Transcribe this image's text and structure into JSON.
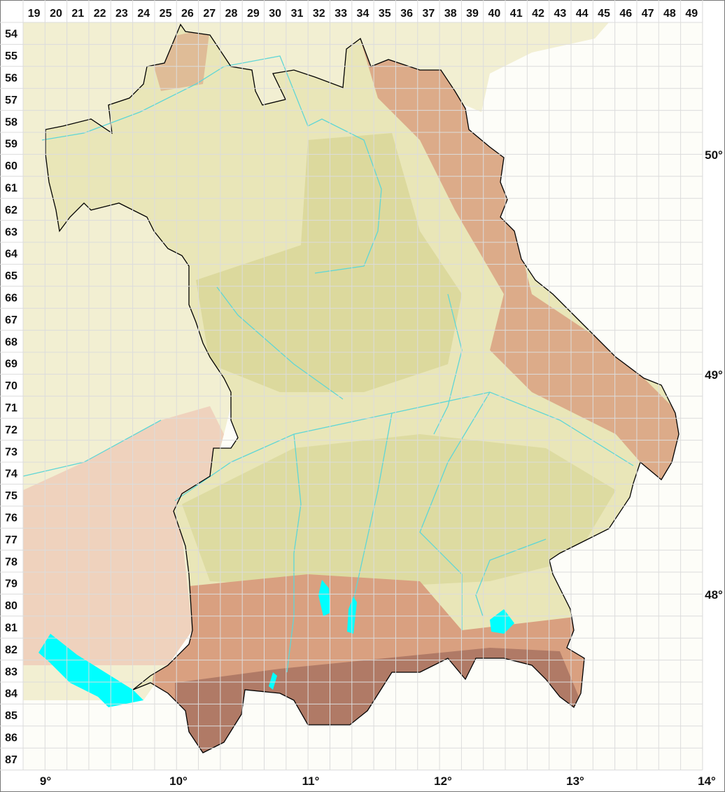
{
  "map": {
    "grid_columns": [
      "19",
      "20",
      "21",
      "22",
      "23",
      "24",
      "25",
      "26",
      "27",
      "28",
      "29",
      "30",
      "31",
      "32",
      "33",
      "34",
      "35",
      "36",
      "37",
      "38",
      "39",
      "40",
      "41",
      "42",
      "43",
      "44",
      "45",
      "46",
      "47",
      "48",
      "49"
    ],
    "grid_rows": [
      "54",
      "55",
      "56",
      "57",
      "58",
      "59",
      "60",
      "61",
      "62",
      "63",
      "64",
      "65",
      "66",
      "67",
      "68",
      "69",
      "70",
      "71",
      "72",
      "73",
      "74",
      "75",
      "76",
      "77",
      "78",
      "79",
      "80",
      "81",
      "82",
      "83",
      "84",
      "85",
      "86",
      "87"
    ],
    "longitude_labels": [
      "9°",
      "10°",
      "11°",
      "12°",
      "13°",
      "14°"
    ],
    "latitude_labels": [
      "50°",
      "49°",
      "48°"
    ],
    "colors": {
      "background": "#fdfdf8",
      "grid_line": "#dcdcdc",
      "lowland": "#e9e6b8",
      "upland": "#d6d391",
      "highland": "#d9a080",
      "alps": "#b07a66",
      "neighbour_land": "#f2efd2",
      "water": "#00ffff",
      "river": "#5fd6d6",
      "border": "#000000"
    }
  }
}
